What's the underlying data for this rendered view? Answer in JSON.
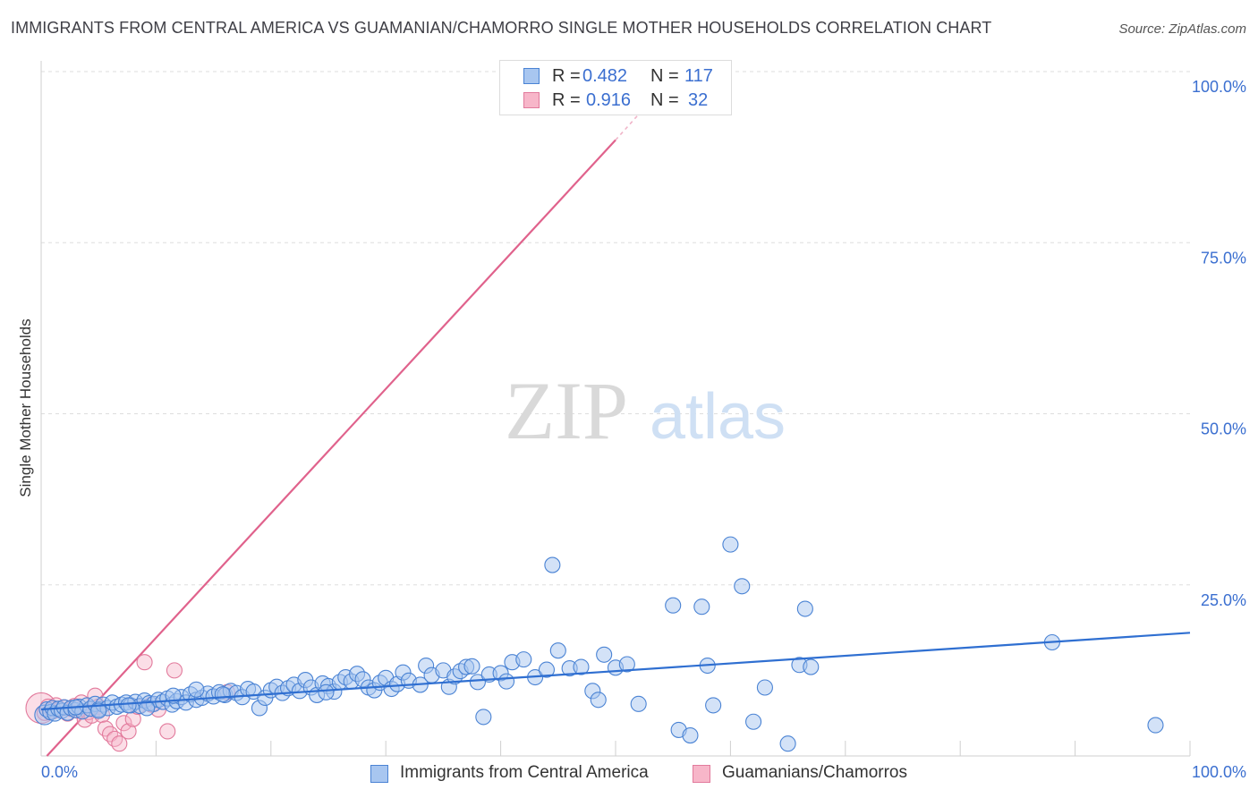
{
  "title": "IMMIGRANTS FROM CENTRAL AMERICA VS GUAMANIAN/CHAMORRO SINGLE MOTHER HOUSEHOLDS CORRELATION CHART",
  "source": "Source: ZipAtlas.com",
  "watermark": {
    "zip": "ZIP",
    "atlas": "atlas"
  },
  "legend": {
    "rows": [
      {
        "r_label": "R =",
        "r_value": "0.482",
        "n_label": "N =",
        "n_value": "117"
      },
      {
        "r_label": "R =",
        "r_value": "0.916",
        "n_label": "N =",
        "n_value": "32"
      }
    ]
  },
  "colors": {
    "blue_fill": "#a8c6f0",
    "blue_stroke": "#4a83d4",
    "blue_line": "#2f6fd1",
    "pink_fill": "#f7b6c9",
    "pink_stroke": "#e27a9c",
    "pink_line": "#e0628c",
    "tick_text": "#3b6fd0",
    "grid": "#dddddd"
  },
  "chart_data": {
    "type": "scatter",
    "title": "IMMIGRANTS FROM CENTRAL AMERICA VS GUAMANIAN/CHAMORRO SINGLE MOTHER HOUSEHOLDS CORRELATION CHART",
    "xlabel": "",
    "ylabel": "Single Mother Households",
    "xlim": [
      0,
      100
    ],
    "ylim": [
      0,
      100
    ],
    "x_tick_labels": [
      "0.0%",
      "100.0%"
    ],
    "y_tick_labels": [
      "25.0%",
      "50.0%",
      "75.0%",
      "100.0%"
    ],
    "y_tick_values": [
      25,
      50,
      75,
      100
    ],
    "grid": true,
    "series": [
      {
        "name": "Immigrants from Central America",
        "color": "blue",
        "r": 0.482,
        "n": 117,
        "trendline": {
          "x": [
            0,
            100
          ],
          "y": [
            6.8,
            18.0
          ]
        },
        "points": [
          [
            0.3,
            6.0
          ],
          [
            0.5,
            6.8
          ],
          [
            0.8,
            6.4
          ],
          [
            1.0,
            7.0
          ],
          [
            1.2,
            6.2
          ],
          [
            1.5,
            6.9
          ],
          [
            1.8,
            6.6
          ],
          [
            2.0,
            7.1
          ],
          [
            2.3,
            6.3
          ],
          [
            2.6,
            7.0
          ],
          [
            3.0,
            6.7
          ],
          [
            3.3,
            7.2
          ],
          [
            3.6,
            6.5
          ],
          [
            4.0,
            7.4
          ],
          [
            4.3,
            6.9
          ],
          [
            4.7,
            7.6
          ],
          [
            5.0,
            6.8
          ],
          [
            5.4,
            7.5
          ],
          [
            5.8,
            7.0
          ],
          [
            6.2,
            7.8
          ],
          [
            6.6,
            7.2
          ],
          [
            7.0,
            7.5
          ],
          [
            7.4,
            7.8
          ],
          [
            7.8,
            7.4
          ],
          [
            8.2,
            7.9
          ],
          [
            8.6,
            7.3
          ],
          [
            9.0,
            8.1
          ],
          [
            9.4,
            7.7
          ],
          [
            9.8,
            7.6
          ],
          [
            10.2,
            8.2
          ],
          [
            10.6,
            7.9
          ],
          [
            11.0,
            8.4
          ],
          [
            11.4,
            7.5
          ],
          [
            11.8,
            8.0
          ],
          [
            12.2,
            8.6
          ],
          [
            12.6,
            7.8
          ],
          [
            13.0,
            9.0
          ],
          [
            13.5,
            8.2
          ],
          [
            14.0,
            8.5
          ],
          [
            14.5,
            9.1
          ],
          [
            15.0,
            8.7
          ],
          [
            15.5,
            9.3
          ],
          [
            16.0,
            8.9
          ],
          [
            16.5,
            9.5
          ],
          [
            17.0,
            9.2
          ],
          [
            17.5,
            8.6
          ],
          [
            18.0,
            9.8
          ],
          [
            18.5,
            9.4
          ],
          [
            19.0,
            7.0
          ],
          [
            19.5,
            8.5
          ],
          [
            20.0,
            9.6
          ],
          [
            20.5,
            10.1
          ],
          [
            21.0,
            9.2
          ],
          [
            21.5,
            9.9
          ],
          [
            22.0,
            10.4
          ],
          [
            22.5,
            9.5
          ],
          [
            23.0,
            11.1
          ],
          [
            23.5,
            10.0
          ],
          [
            24.0,
            8.9
          ],
          [
            24.5,
            10.6
          ],
          [
            25.0,
            10.2
          ],
          [
            25.5,
            9.4
          ],
          [
            26.0,
            10.8
          ],
          [
            26.5,
            11.5
          ],
          [
            27.0,
            10.9
          ],
          [
            27.5,
            12.0
          ],
          [
            28.0,
            11.2
          ],
          [
            28.5,
            10.0
          ],
          [
            29.0,
            9.6
          ],
          [
            29.5,
            10.7
          ],
          [
            30.0,
            11.4
          ],
          [
            30.5,
            9.8
          ],
          [
            31.0,
            10.5
          ],
          [
            31.5,
            12.2
          ],
          [
            32.0,
            11.0
          ],
          [
            33.0,
            10.4
          ],
          [
            33.5,
            13.2
          ],
          [
            34.0,
            11.8
          ],
          [
            35.0,
            12.5
          ],
          [
            35.5,
            10.1
          ],
          [
            36.0,
            11.6
          ],
          [
            36.5,
            12.4
          ],
          [
            37.0,
            13.0
          ],
          [
            38.0,
            10.8
          ],
          [
            39.0,
            11.9
          ],
          [
            40.0,
            12.1
          ],
          [
            40.5,
            10.9
          ],
          [
            41.0,
            13.7
          ],
          [
            42.0,
            14.1
          ],
          [
            43.0,
            11.5
          ],
          [
            44.0,
            12.6
          ],
          [
            45.0,
            15.4
          ],
          [
            46.0,
            12.8
          ],
          [
            47.0,
            13.0
          ],
          [
            48.0,
            9.5
          ],
          [
            48.5,
            8.2
          ],
          [
            49.0,
            14.8
          ],
          [
            50.0,
            12.9
          ],
          [
            51.0,
            13.4
          ],
          [
            52.0,
            7.6
          ],
          [
            55.0,
            22.0
          ],
          [
            55.5,
            3.8
          ],
          [
            56.5,
            3.0
          ],
          [
            57.5,
            21.8
          ],
          [
            58.0,
            13.2
          ],
          [
            58.5,
            7.4
          ],
          [
            60.0,
            30.9
          ],
          [
            61.0,
            24.8
          ],
          [
            62.0,
            5.0
          ],
          [
            63.0,
            10.0
          ],
          [
            65.0,
            1.8
          ],
          [
            66.0,
            13.3
          ],
          [
            66.5,
            21.5
          ],
          [
            67.0,
            13.0
          ],
          [
            88.0,
            16.6
          ],
          [
            97.0,
            4.5
          ],
          [
            44.5,
            27.9
          ],
          [
            37.5,
            13.1
          ],
          [
            38.5,
            5.7
          ],
          [
            24.8,
            9.3
          ],
          [
            3.0,
            7.1
          ],
          [
            5.0,
            6.6
          ],
          [
            7.6,
            7.4
          ],
          [
            9.2,
            7.0
          ],
          [
            11.5,
            8.8
          ],
          [
            13.5,
            9.7
          ],
          [
            15.8,
            9.0
          ]
        ]
      },
      {
        "name": "Guamanians/Chamorros",
        "color": "pink",
        "r": 0.916,
        "n": 32,
        "trendline": {
          "x": [
            0.5,
            50
          ],
          "y": [
            0.0,
            90.0
          ],
          "dashed_extension": {
            "x": [
              50,
              53
            ],
            "y": [
              90.0,
              95.6
            ]
          }
        },
        "points": [
          [
            0.0,
            7.0
          ],
          [
            0.3,
            6.3
          ],
          [
            0.6,
            7.2
          ],
          [
            1.0,
            6.5
          ],
          [
            1.3,
            7.4
          ],
          [
            1.6,
            6.8
          ],
          [
            2.0,
            7.1
          ],
          [
            2.3,
            6.2
          ],
          [
            2.6,
            6.9
          ],
          [
            2.9,
            7.3
          ],
          [
            3.2,
            6.6
          ],
          [
            3.5,
            7.8
          ],
          [
            3.8,
            5.3
          ],
          [
            4.1,
            6.4
          ],
          [
            4.4,
            5.9
          ],
          [
            4.7,
            8.8
          ],
          [
            5.0,
            7.2
          ],
          [
            5.3,
            6.0
          ],
          [
            5.6,
            4.0
          ],
          [
            6.0,
            3.2
          ],
          [
            6.4,
            2.5
          ],
          [
            6.8,
            1.8
          ],
          [
            7.2,
            4.8
          ],
          [
            7.6,
            3.6
          ],
          [
            8.0,
            5.4
          ],
          [
            8.4,
            7.2
          ],
          [
            9.0,
            13.7
          ],
          [
            9.6,
            7.5
          ],
          [
            10.2,
            6.8
          ],
          [
            11.0,
            3.6
          ],
          [
            11.6,
            12.5
          ],
          [
            16.2,
            9.3
          ]
        ]
      }
    ]
  },
  "bottom_legend": {
    "items": [
      {
        "label": "Immigrants from Central America"
      },
      {
        "label": "Guamanians/Chamorros"
      }
    ]
  }
}
